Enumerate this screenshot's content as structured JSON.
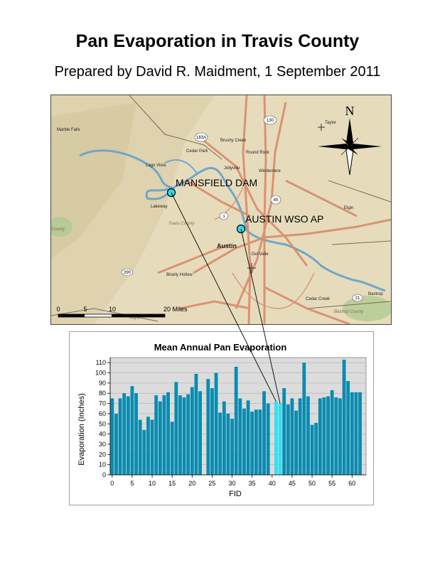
{
  "header": {
    "title": "Pan Evaporation in Travis County",
    "subtitle": "Prepared by David R. Maidment, 1 September 2011"
  },
  "map": {
    "stations": [
      {
        "name": "MANSFIELD DAM",
        "fid": 41
      },
      {
        "name": "AUSTIN WSO AP",
        "fid": 42
      }
    ],
    "places": [
      "Marble Falls",
      "Lago Vista",
      "Cedar Park",
      "Brushy Creek",
      "Round Rock",
      "Jollyville",
      "Windemere",
      "Taylor",
      "Lakeway",
      "Travis County",
      "Austin",
      "Del Valle",
      "Elgin",
      "Bastrop",
      "Cedar Creek",
      "Bastrop County",
      "Hays",
      "Briarly Hollow",
      "County"
    ],
    "highways": [
      "130",
      "183A",
      "45",
      "1",
      "290",
      "21"
    ],
    "north_label": "N",
    "scale_labels": [
      "0",
      "5",
      "10",
      "20 Miles"
    ],
    "colors": {
      "land": "#e3d9b8",
      "water": "#6fa6c8",
      "roads": "#d98a6a",
      "station": "#33d8e8"
    }
  },
  "chart_data": {
    "type": "bar",
    "title": "Mean Annual Pan Evaporation",
    "xlabel": "FID",
    "ylabel": "Evaporation (Inches)",
    "ylim": [
      0,
      115
    ],
    "xlim": [
      -0.5,
      63.5
    ],
    "yticks": [
      0,
      10,
      20,
      30,
      40,
      50,
      60,
      70,
      80,
      90,
      100,
      110
    ],
    "xticks": [
      0,
      5,
      10,
      15,
      20,
      25,
      30,
      35,
      40,
      45,
      50,
      55,
      60
    ],
    "grid": true,
    "x": [
      0,
      1,
      2,
      3,
      4,
      5,
      6,
      7,
      8,
      9,
      10,
      11,
      12,
      13,
      14,
      15,
      16,
      17,
      18,
      19,
      20,
      21,
      22,
      23,
      24,
      25,
      26,
      27,
      28,
      29,
      30,
      31,
      32,
      33,
      34,
      35,
      36,
      37,
      38,
      39,
      40,
      41,
      42,
      43,
      44,
      45,
      46,
      47,
      48,
      49,
      50,
      51,
      52,
      53,
      54,
      55,
      56,
      57,
      58,
      59,
      60,
      61,
      62,
      63
    ],
    "values": [
      75,
      60,
      75,
      80,
      77,
      87,
      80,
      54,
      44,
      57,
      54,
      78,
      72,
      78,
      81,
      52,
      91,
      78,
      76,
      79,
      86,
      99,
      82,
      0,
      94,
      85,
      100,
      61,
      72,
      60,
      55,
      106,
      75,
      65,
      73,
      62,
      64,
      64,
      82,
      70,
      0,
      72,
      70,
      85,
      69,
      75,
      63,
      75,
      110,
      77,
      49,
      51,
      75,
      76,
      77,
      83,
      76,
      75,
      113,
      92,
      81,
      81,
      81,
      0
    ],
    "highlight_fids": [
      41,
      42
    ],
    "colors": {
      "bar": "#0b8bb0",
      "highlight": "#33e0f0",
      "plot_bg": "#dcdcdc",
      "grid": "#b0b0b0"
    }
  }
}
